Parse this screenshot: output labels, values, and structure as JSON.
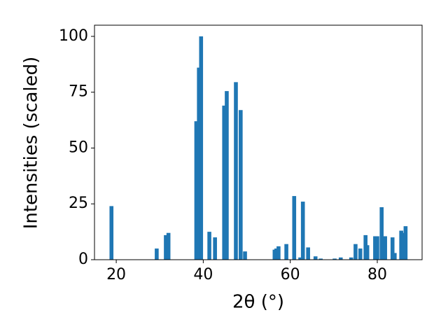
{
  "chart_data": {
    "type": "bar",
    "xlabel": "2θ (°)",
    "ylabel": "Intensities (scaled)",
    "x": [
      18.9,
      29.3,
      31.4,
      32.0,
      38.4,
      39.0,
      39.5,
      41.4,
      42.7,
      44.8,
      45.4,
      47.5,
      48.6,
      49.6,
      56.4,
      56.8,
      57.3,
      59.1,
      60.9,
      62.3,
      62.9,
      64.1,
      65.8,
      67.0,
      70.2,
      71.6,
      74.0,
      75.0,
      76.1,
      77.3,
      77.7,
      79.5,
      80.0,
      81.0,
      81.8,
      83.5,
      84.0,
      85.5,
      86.0,
      86.5
    ],
    "values": [
      24,
      5,
      11,
      12,
      62,
      86,
      100,
      12.5,
      10,
      69,
      75.5,
      79.5,
      67,
      3.7,
      4.5,
      5,
      6,
      7,
      28.5,
      1,
      26,
      5.5,
      1.5,
      0.5,
      0.5,
      1,
      1,
      7,
      5,
      11,
      6.5,
      10.5,
      10.5,
      23.5,
      10.5,
      10,
      3,
      13,
      12,
      15
    ],
    "color": "#1f77b4",
    "xlim": [
      15,
      90.3
    ],
    "ylim": [
      0,
      105
    ],
    "xticks": [
      20,
      40,
      60,
      80
    ],
    "yticks": [
      0,
      25,
      50,
      75,
      100
    ]
  }
}
